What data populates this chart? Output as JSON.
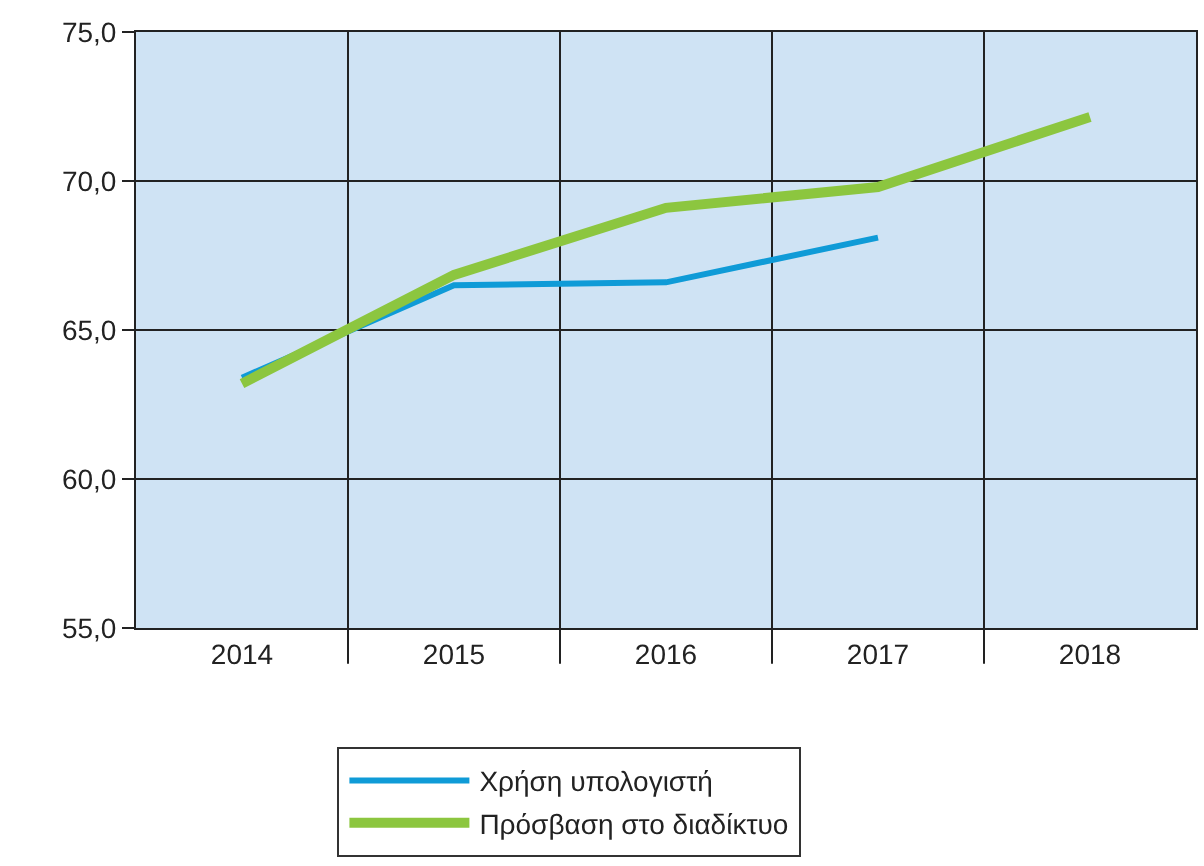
{
  "chart_data": {
    "type": "line",
    "categories": [
      "2014",
      "2015",
      "2016",
      "2017",
      "2018"
    ],
    "series": [
      {
        "name": "Χρήση υπολογιστή",
        "color": "#0f9bd7",
        "values": [
          63.4,
          66.5,
          66.6,
          68.1,
          null
        ]
      },
      {
        "name": "Πρόσβαση στο διαδίκτυο",
        "color": "#8cc63f",
        "values": [
          63.2,
          66.85,
          69.1,
          69.8,
          72.15
        ]
      }
    ],
    "ylim": [
      55,
      75
    ],
    "yticks": [
      {
        "value": 55,
        "label": "55,0"
      },
      {
        "value": 60,
        "label": "60,0"
      },
      {
        "value": 65,
        "label": "65,0"
      },
      {
        "value": 70,
        "label": "70,0"
      },
      {
        "value": 75,
        "label": "75,0"
      }
    ],
    "grid": true,
    "legend": "bottom",
    "marker": "none",
    "line_style": "solid"
  }
}
